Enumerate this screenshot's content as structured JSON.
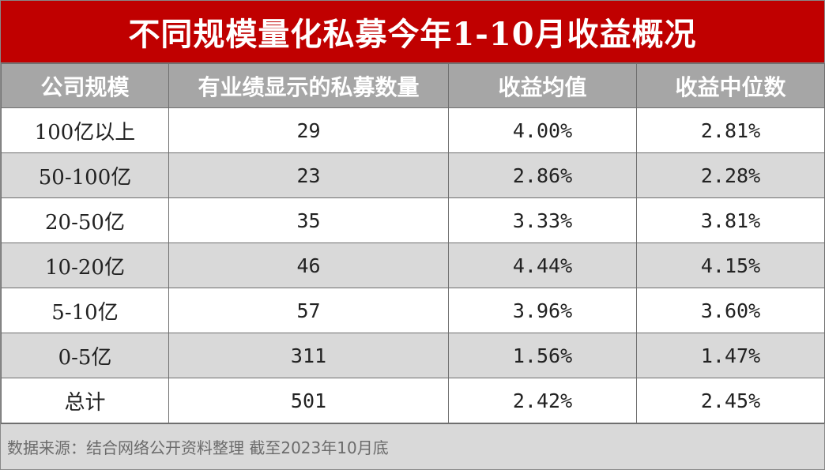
{
  "title": "不同规模量化私募今年1-10月收益概况",
  "colors": {
    "title_bg": "#c00000",
    "header_bg": "#a6a6a6",
    "stripe_bg": "#d9d9d9",
    "footer_bg": "#d9d9d9"
  },
  "table": {
    "headers": [
      "公司规模",
      "有业绩显示的私募数量",
      "收益均值",
      "收益中位数"
    ],
    "rows": [
      {
        "scale": "100亿以上",
        "count": "29",
        "mean": "4.00%",
        "median": "2.81%"
      },
      {
        "scale": "50-100亿",
        "count": "23",
        "mean": "2.86%",
        "median": "2.28%"
      },
      {
        "scale": "20-50亿",
        "count": "35",
        "mean": "3.33%",
        "median": "3.81%"
      },
      {
        "scale": "10-20亿",
        "count": "46",
        "mean": "4.44%",
        "median": "4.15%"
      },
      {
        "scale": "5-10亿",
        "count": "57",
        "mean": "3.96%",
        "median": "3.60%"
      },
      {
        "scale": "0-5亿",
        "count": "311",
        "mean": "1.56%",
        "median": "1.47%"
      },
      {
        "scale": "总计",
        "count": "501",
        "mean": "2.42%",
        "median": "2.45%"
      }
    ]
  },
  "footer": {
    "source": "数据来源：结合网络公开资料整理 截至2023年10月底"
  }
}
